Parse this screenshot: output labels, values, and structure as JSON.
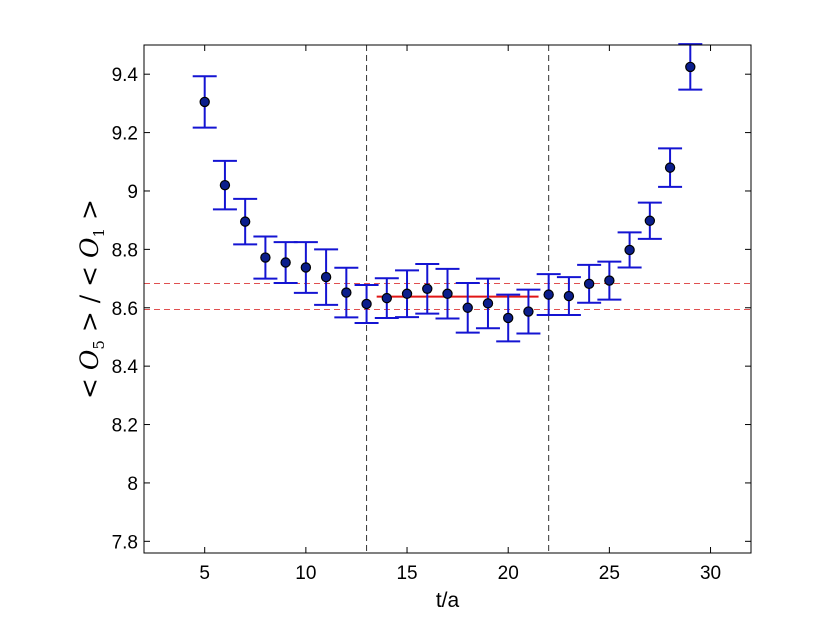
{
  "chart_data": {
    "type": "scatter",
    "title": "",
    "xlabel": "t/a",
    "ylabel": "< O5 > / < O1 >",
    "xlim": [
      2,
      32
    ],
    "ylim": [
      7.76,
      9.5
    ],
    "xticks": [
      5,
      10,
      15,
      20,
      25,
      30
    ],
    "yticks": [
      7.8,
      8,
      8.2,
      8.4,
      8.6,
      8.8,
      9,
      9.2,
      9.4
    ],
    "xtick_labels": [
      "5",
      "10",
      "15",
      "20",
      "25",
      "30"
    ],
    "ytick_labels": [
      "7.8",
      "8",
      "8.2",
      "8.4",
      "8.6",
      "8.8",
      "9",
      "9.2",
      "9.4"
    ],
    "grid": false,
    "series": [
      {
        "marker_color": "#0b1e8c",
        "errorbar_color": "#1414d2",
        "x": [
          5,
          6,
          7,
          8,
          9,
          10,
          11,
          12,
          13,
          14,
          15,
          16,
          17,
          18,
          19,
          20,
          21,
          22,
          23,
          24,
          25,
          26,
          27,
          28,
          29
        ],
        "y": [
          9.305,
          9.02,
          8.895,
          8.772,
          8.755,
          8.738,
          8.705,
          8.652,
          8.613,
          8.633,
          8.648,
          8.665,
          8.648,
          8.6,
          8.615,
          8.565,
          8.587,
          8.645,
          8.64,
          8.682,
          8.693,
          8.798,
          8.898,
          9.08,
          9.425
        ],
        "yerr": [
          0.088,
          0.083,
          0.078,
          0.072,
          0.07,
          0.087,
          0.095,
          0.085,
          0.065,
          0.068,
          0.08,
          0.085,
          0.085,
          0.085,
          0.085,
          0.08,
          0.075,
          0.07,
          0.065,
          0.065,
          0.065,
          0.06,
          0.062,
          0.066,
          0.078
        ]
      }
    ],
    "fit_line": {
      "x": [
        13.5,
        21.5
      ],
      "y": 8.638,
      "color": "#e01515"
    },
    "hlines": [
      {
        "y": 8.683,
        "color": "#e05050",
        "style": "dashed"
      },
      {
        "y": 8.594,
        "color": "#e05050",
        "style": "dashed"
      }
    ],
    "vlines": [
      {
        "x": 13,
        "color": "#333333",
        "style": "dashed"
      },
      {
        "x": 22,
        "color": "#333333",
        "style": "dashed"
      }
    ]
  }
}
